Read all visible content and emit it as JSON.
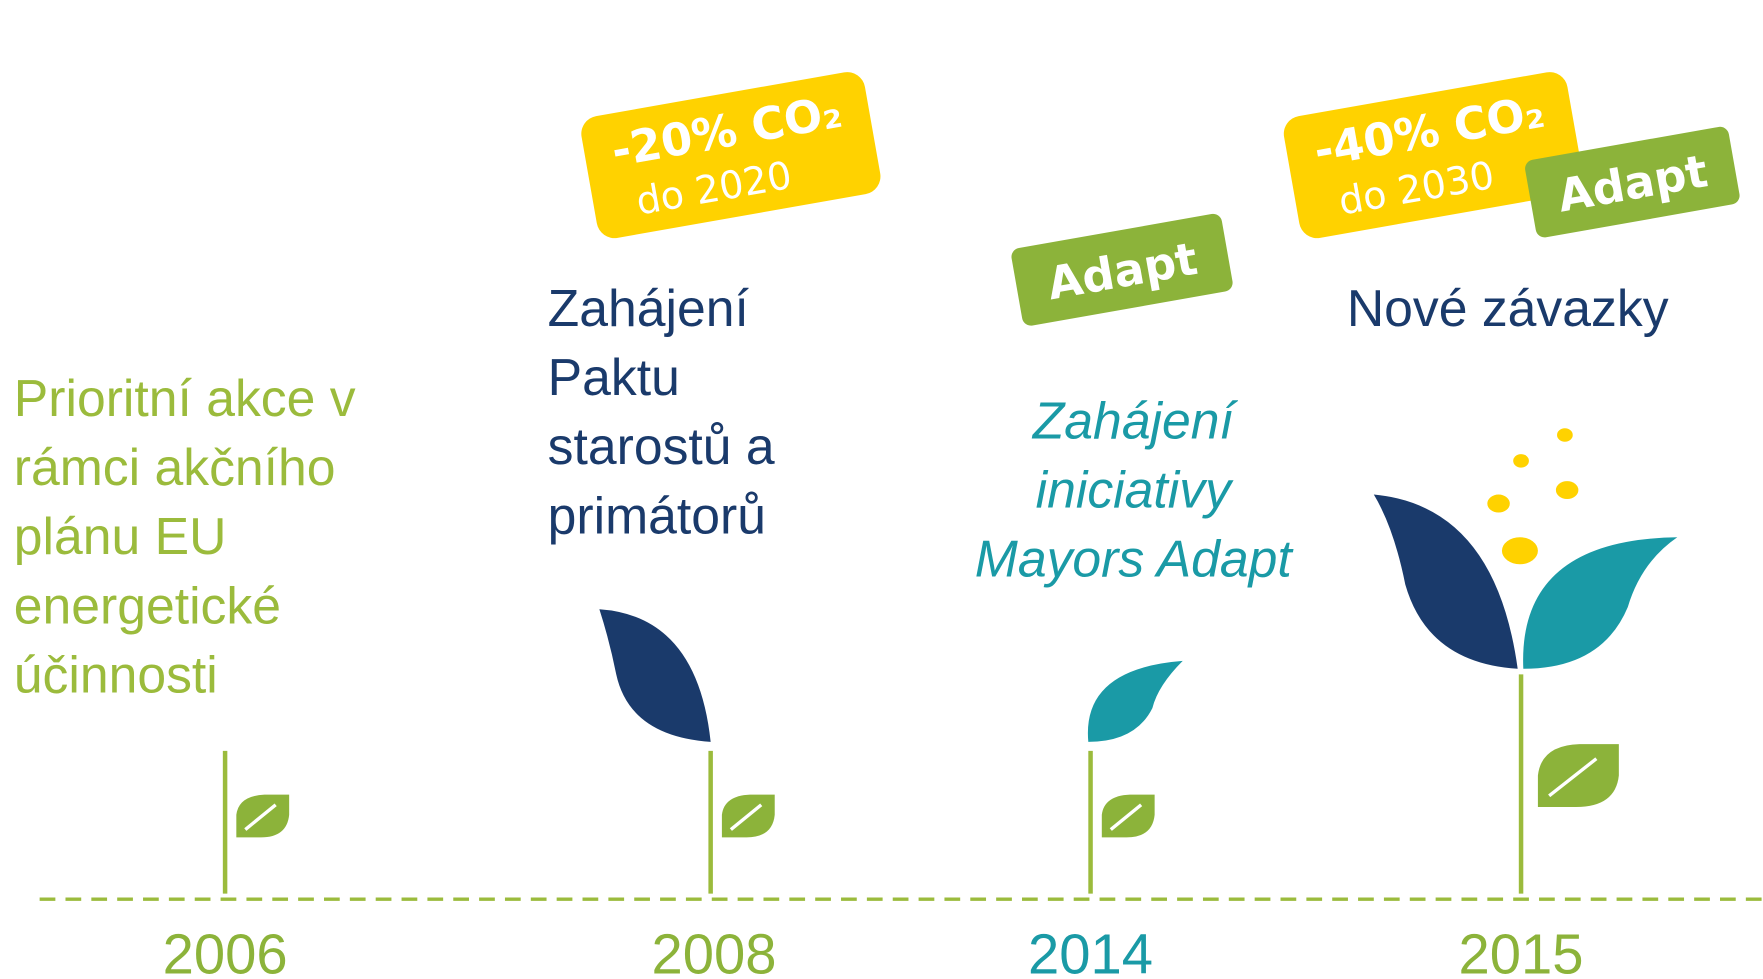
{
  "milestones": [
    {
      "year": "2006",
      "lines": [
        "Prioritní akce v",
        "rámci akčního",
        "plánu EU",
        "energetické",
        "účinnosti"
      ]
    },
    {
      "year": "2008",
      "lines": [
        "Zahájení",
        "Paktu",
        "starostů a",
        "primátorů"
      ],
      "badge": {
        "main": "-20% CO₂",
        "sub": "do 2020"
      }
    },
    {
      "year": "2014",
      "lines": [
        "Zahájení",
        "iniciativy",
        "Mayors Adapt"
      ],
      "tag": "Adapt"
    },
    {
      "year": "2015",
      "lines": [
        "Nové závazky"
      ],
      "badge": {
        "main": "-40% CO₂",
        "sub": "do 2030"
      },
      "tag": "Adapt"
    }
  ]
}
